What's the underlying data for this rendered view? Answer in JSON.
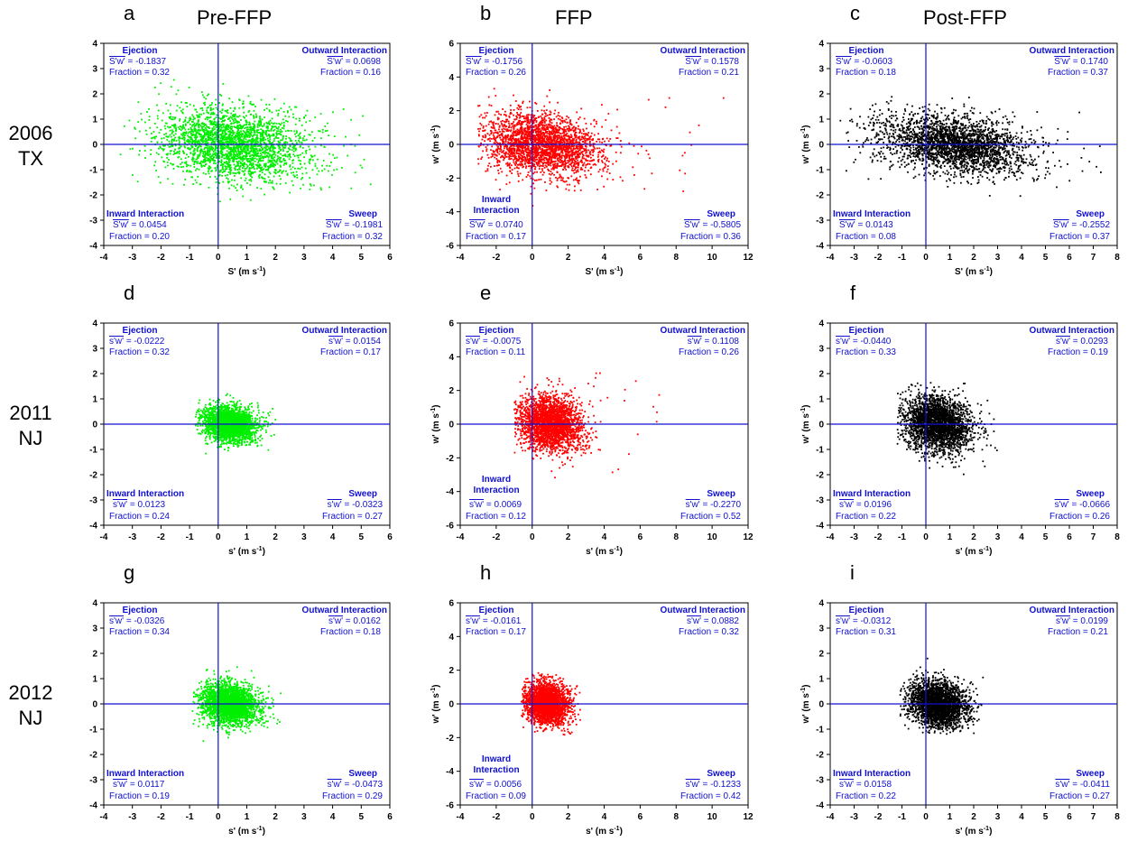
{
  "columns": [
    "Pre-FFP",
    "FFP",
    "Post-FFP"
  ],
  "rows": [
    {
      "year": "2006",
      "site": "TX"
    },
    {
      "year": "2011",
      "site": "NJ"
    },
    {
      "year": "2012",
      "site": "NJ"
    }
  ],
  "colors": {
    "Pre-FFP": "#00ee00",
    "FFP": "#ff0000",
    "Post-FFP": "#000000",
    "axis_lines": "#1010d0",
    "annotation": "#1010d0"
  },
  "chart_data": [
    {
      "letter": "a",
      "type": "scatter",
      "xlabel": "S' (m s-1)",
      "ylabel": "",
      "xlim": [
        -4,
        6
      ],
      "ylim": [
        -4,
        4
      ],
      "xticks": [
        -4,
        -3,
        -2,
        -1,
        0,
        1,
        2,
        3,
        4,
        5,
        6
      ],
      "yticks": [
        -4,
        -3,
        -2,
        -1,
        0,
        1,
        2,
        3,
        4
      ],
      "cloud": {
        "cx": 0.5,
        "cy": 0.0,
        "sx": 1.3,
        "sy": 0.7,
        "xmin": -3.6,
        "xmax": 5.6,
        "ymin": -2.3,
        "ymax": 2.7
      },
      "quadrants": {
        "ejection": {
          "name": "Ejection",
          "stat": "S'w' = -0.1837",
          "fraction": "Fraction = 0.32"
        },
        "outward": {
          "name": "Outward Interaction",
          "stat": "S'w' = 0.0698",
          "fraction": "Fraction = 0.16"
        },
        "inward": {
          "name": "Inward Interaction",
          "stat": "S'w' = 0.0454",
          "fraction": "Fraction = 0.20"
        },
        "sweep": {
          "name": "Sweep",
          "stat": "S'w' = -0.1981",
          "fraction": "Fraction = 0.32"
        }
      }
    },
    {
      "letter": "b",
      "type": "scatter",
      "xlabel": "S' (m s-1)",
      "ylabel": "w' (m s-1)",
      "xlim": [
        -4,
        12
      ],
      "ylim": [
        -6,
        6
      ],
      "xticks": [
        -4,
        -2,
        0,
        2,
        4,
        6,
        8,
        10,
        12
      ],
      "yticks": [
        -6,
        -4,
        -2,
        0,
        2,
        4,
        6
      ],
      "cloud": {
        "cx": 0.5,
        "cy": 0.0,
        "sx": 1.6,
        "sy": 0.9,
        "xmin": -3.0,
        "xmax": 11.0,
        "ymin": -4.0,
        "ymax": 4.9
      },
      "quadrants": {
        "ejection": {
          "name": "Ejection",
          "stat": "S'w' = -0.1756",
          "fraction": "Fraction = 0.26"
        },
        "outward": {
          "name": "Outward Interaction",
          "stat": "S'w' = 0.1578",
          "fraction": "Fraction = 0.21"
        },
        "inward": {
          "name": "Inward Interaction",
          "stat": "S'w' = 0.0740",
          "fraction": "Fraction = 0.17"
        },
        "sweep": {
          "name": "Sweep",
          "stat": "S'w' = -0.5805",
          "fraction": "Fraction = 0.36"
        }
      }
    },
    {
      "letter": "c",
      "type": "scatter",
      "xlabel": "S' (m s-1)",
      "ylabel": "w' (m s-1)",
      "xlim": [
        -4,
        8
      ],
      "ylim": [
        -4,
        4
      ],
      "xticks": [
        -4,
        -3,
        -2,
        -1,
        0,
        1,
        2,
        3,
        4,
        5,
        6,
        7,
        8
      ],
      "yticks": [
        -4,
        -3,
        -2,
        -1,
        0,
        1,
        2,
        3,
        4
      ],
      "cloud": {
        "cx": 1.2,
        "cy": 0.0,
        "sx": 1.6,
        "sy": 0.55,
        "xmin": -3.6,
        "xmax": 7.6,
        "ymin": -2.2,
        "ymax": 2.4
      },
      "quadrants": {
        "ejection": {
          "name": "Ejection",
          "stat": "S'w' = -0.0603",
          "fraction": "Fraction = 0.18"
        },
        "outward": {
          "name": "Outward Interaction",
          "stat": "S'w' = 0.1740",
          "fraction": "Fraction = 0.37"
        },
        "inward": {
          "name": "Inward Interaction",
          "stat": "S'w' = 0.0143",
          "fraction": "Fraction = 0.08"
        },
        "sweep": {
          "name": "Sweep",
          "stat": "S'w' = -0.2552",
          "fraction": "Fraction = 0.37"
        }
      }
    },
    {
      "letter": "d",
      "type": "scatter",
      "xlabel": "s' (m s-1)",
      "ylabel": "",
      "xlim": [
        -4,
        6
      ],
      "ylim": [
        -4,
        4
      ],
      "xticks": [
        -4,
        -3,
        -2,
        -1,
        0,
        1,
        2,
        3,
        4,
        5,
        6
      ],
      "yticks": [
        -4,
        -3,
        -2,
        -1,
        0,
        1,
        2,
        3,
        4
      ],
      "cloud": {
        "cx": 0.4,
        "cy": 0.0,
        "sx": 0.45,
        "sy": 0.35,
        "xmin": -0.8,
        "xmax": 2.0,
        "ymin": -1.2,
        "ymax": 1.4
      },
      "quadrants": {
        "ejection": {
          "name": "Ejection",
          "stat": "s'w' = -0.0222",
          "fraction": "Fraction = 0.32"
        },
        "outward": {
          "name": "Outward Interaction",
          "stat": "s'w' = 0.0154",
          "fraction": "Fraction = 0.17"
        },
        "inward": {
          "name": "Inward Interaction",
          "stat": "s'w' = 0.0123",
          "fraction": "Fraction = 0.24"
        },
        "sweep": {
          "name": "Sweep",
          "stat": "s'w' = -0.0323",
          "fraction": "Fraction = 0.27"
        }
      }
    },
    {
      "letter": "e",
      "type": "scatter",
      "xlabel": "s' (m s-1)",
      "ylabel": "w' (m s-1)",
      "xlim": [
        -4,
        12
      ],
      "ylim": [
        -6,
        6
      ],
      "xticks": [
        -4,
        -2,
        0,
        2,
        4,
        6,
        8,
        10,
        12
      ],
      "yticks": [
        -6,
        -4,
        -2,
        0,
        2,
        4,
        6
      ],
      "cloud": {
        "cx": 1.0,
        "cy": 0.0,
        "sx": 0.9,
        "sy": 0.8,
        "xmin": -1.0,
        "xmax": 7.2,
        "ymin": -3.3,
        "ymax": 5.3
      },
      "quadrants": {
        "ejection": {
          "name": "Ejection",
          "stat": "s'w' = -0.0075",
          "fraction": "Fraction = 0.11"
        },
        "outward": {
          "name": "Outward Interaction",
          "stat": "s'w' = 0.1108",
          "fraction": "Fraction = 0.26"
        },
        "inward": {
          "name": "Inward Interaction",
          "stat": "s'w' = 0.0069",
          "fraction": "Fraction = 0.12"
        },
        "sweep": {
          "name": "Sweep",
          "stat": "s'w' = -0.2270",
          "fraction": "Fraction = 0.52"
        }
      }
    },
    {
      "letter": "f",
      "type": "scatter",
      "xlabel": "s' (m s-1)",
      "ylabel": "w' (m s-1)",
      "xlim": [
        -4,
        8
      ],
      "ylim": [
        -4,
        4
      ],
      "xticks": [
        -4,
        -3,
        -2,
        -1,
        0,
        1,
        2,
        3,
        4,
        5,
        6,
        7,
        8
      ],
      "yticks": [
        -4,
        -3,
        -2,
        -1,
        0,
        1,
        2,
        3,
        4
      ],
      "cloud": {
        "cx": 0.5,
        "cy": 0.0,
        "sx": 0.7,
        "sy": 0.55,
        "xmin": -1.2,
        "xmax": 3.0,
        "ymin": -3.0,
        "ymax": 1.7
      },
      "quadrants": {
        "ejection": {
          "name": "Ejection",
          "stat": "s'w' = -0.0440",
          "fraction": "Fraction = 0.33"
        },
        "outward": {
          "name": "Outward Interaction",
          "stat": "s'w' = 0.0293",
          "fraction": "Fraction = 0.19"
        },
        "inward": {
          "name": "Inward Interaction",
          "stat": "s'w' = 0.0196",
          "fraction": "Fraction = 0.22"
        },
        "sweep": {
          "name": "Sweep",
          "stat": "s'w' = -0.0666",
          "fraction": "Fraction = 0.26"
        }
      }
    },
    {
      "letter": "g",
      "type": "scatter",
      "xlabel": "s' (m s-1)",
      "ylabel": "",
      "xlim": [
        -4,
        6
      ],
      "ylim": [
        -4,
        4
      ],
      "xticks": [
        -4,
        -3,
        -2,
        -1,
        0,
        1,
        2,
        3,
        4,
        5,
        6
      ],
      "yticks": [
        -4,
        -3,
        -2,
        -1,
        0,
        1,
        2,
        3,
        4
      ],
      "cloud": {
        "cx": 0.4,
        "cy": 0.0,
        "sx": 0.5,
        "sy": 0.4,
        "xmin": -0.9,
        "xmax": 2.2,
        "ymin": -1.6,
        "ymax": 1.5
      },
      "quadrants": {
        "ejection": {
          "name": "Ejection",
          "stat": "s'w' = -0.0326",
          "fraction": "Fraction = 0.34"
        },
        "outward": {
          "name": "Outward Interaction",
          "stat": "s'w' = 0.0162",
          "fraction": "Fraction = 0.18"
        },
        "inward": {
          "name": "Inward Interaction",
          "stat": "s'w' = 0.0117",
          "fraction": "Fraction = 0.19"
        },
        "sweep": {
          "name": "Sweep",
          "stat": "s'w' = -0.0473",
          "fraction": "Fraction = 0.29"
        }
      }
    },
    {
      "letter": "h",
      "type": "scatter",
      "xlabel": "s' (m s-1)",
      "ylabel": "w' (m s-1)",
      "xlim": [
        -4,
        12
      ],
      "ylim": [
        -6,
        6
      ],
      "xticks": [
        -4,
        -2,
        0,
        2,
        4,
        6,
        8,
        10,
        12
      ],
      "yticks": [
        -6,
        -4,
        -2,
        0,
        2,
        4,
        6
      ],
      "cloud": {
        "cx": 0.8,
        "cy": 0.0,
        "sx": 0.6,
        "sy": 0.6,
        "xmin": -0.6,
        "xmax": 2.7,
        "ymin": -2.0,
        "ymax": 2.0
      },
      "quadrants": {
        "ejection": {
          "name": "Ejection",
          "stat": "s'w' = -0.0161",
          "fraction": "Fraction = 0.17"
        },
        "outward": {
          "name": "Outward Interaction",
          "stat": "s'w' = 0.0882",
          "fraction": "Fraction = 0.32"
        },
        "inward": {
          "name": "Inward Interaction",
          "stat": "s'w' = 0.0056",
          "fraction": "Fraction = 0.09"
        },
        "sweep": {
          "name": "Sweep",
          "stat": "s'w' = -0.1233",
          "fraction": "Fraction = 0.42"
        }
      }
    },
    {
      "letter": "i",
      "type": "scatter",
      "xlabel": "s' (m s-1)",
      "ylabel": "w' (m s-1)",
      "xlim": [
        -4,
        8
      ],
      "ylim": [
        -4,
        4
      ],
      "xticks": [
        -4,
        -3,
        -2,
        -1,
        0,
        1,
        2,
        3,
        4,
        5,
        6,
        7,
        8
      ],
      "yticks": [
        -4,
        -3,
        -2,
        -1,
        0,
        1,
        2,
        3,
        4
      ],
      "cloud": {
        "cx": 0.5,
        "cy": 0.0,
        "sx": 0.6,
        "sy": 0.45,
        "xmin": -1.1,
        "xmax": 2.4,
        "ymin": -1.2,
        "ymax": 1.8
      },
      "quadrants": {
        "ejection": {
          "name": "Ejection",
          "stat": "s'w' = -0.0312",
          "fraction": "Fraction = 0.31"
        },
        "outward": {
          "name": "Outward Interaction",
          "stat": "s'w' = 0.0199",
          "fraction": "Fraction = 0.21"
        },
        "inward": {
          "name": "Inward Interaction",
          "stat": "s'w' = 0.0158",
          "fraction": "Fraction = 0.22"
        },
        "sweep": {
          "name": "Sweep",
          "stat": "s'w' = -0.0411",
          "fraction": "Fraction = 0.27"
        }
      }
    }
  ]
}
